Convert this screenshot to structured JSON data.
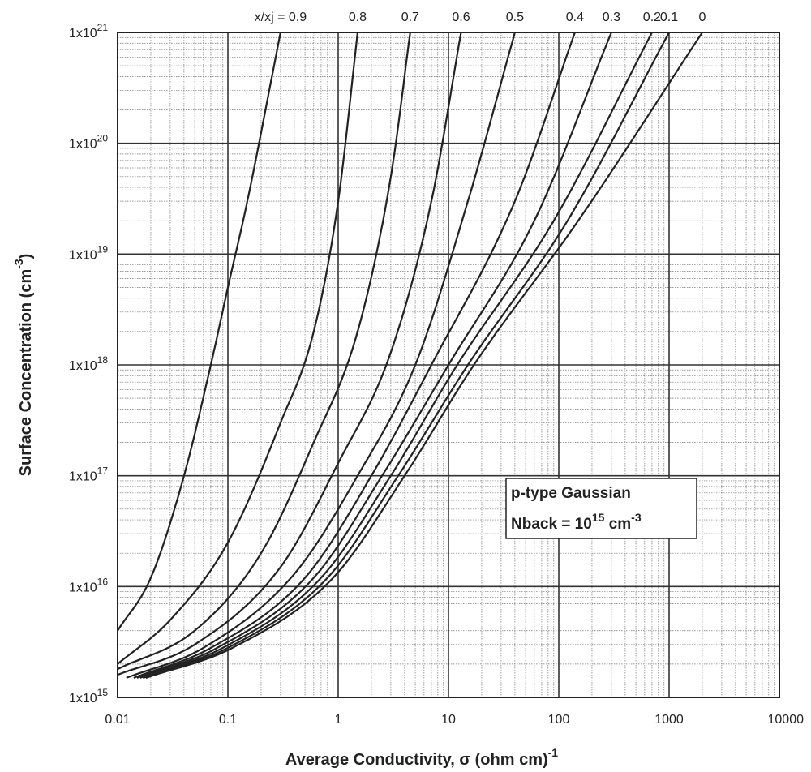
{
  "chart_data": {
    "type": "line",
    "xscale": "log",
    "yscale": "log",
    "xlim": [
      0.01,
      10000
    ],
    "ylim": [
      1000000000000000.0,
      1e+21
    ],
    "grid": true,
    "xlabel": {
      "main": "Average Conductivity, σ (ohm cm)",
      "sup": "-1"
    },
    "ylabel": {
      "main": "Surface Concentration (cm",
      "sup": "-3",
      "tail": ")"
    },
    "x_ticks": [
      {
        "value": 0.01,
        "label": "0.01"
      },
      {
        "value": 0.1,
        "label": "0.1"
      },
      {
        "value": 1,
        "label": "1"
      },
      {
        "value": 10,
        "label": "10"
      },
      {
        "value": 100,
        "label": "100"
      },
      {
        "value": 1000,
        "label": "1000"
      },
      {
        "value": 10000,
        "label": "10000"
      }
    ],
    "y_ticks": [
      {
        "value": 1000000000000000.0,
        "base": "1x10",
        "exp": "15"
      },
      {
        "value": 1e+16,
        "base": "1x10",
        "exp": "16"
      },
      {
        "value": 1e+17,
        "base": "1x10",
        "exp": "17"
      },
      {
        "value": 1e+18,
        "base": "1x10",
        "exp": "18"
      },
      {
        "value": 1e+19,
        "base": "1x10",
        "exp": "19"
      },
      {
        "value": 1e+20,
        "base": "1x10",
        "exp": "20"
      },
      {
        "value": 1e+21,
        "base": "1x10",
        "exp": "21"
      }
    ],
    "annotation": {
      "line1": "p-type Gaussian",
      "line2_prefix": "Nback = 10",
      "line2_exp": "15",
      "line2_unit": " cm",
      "line2_unit_exp": "-3"
    },
    "series": [
      {
        "name": "x/xj = 0.9",
        "x": [
          0.01,
          0.02,
          0.04,
          0.07,
          0.1,
          0.15,
          0.3
        ],
        "y": [
          4000000000000000.0,
          1.2e+16,
          1e+17,
          1e+18,
          5e+18,
          3e+19,
          1e+21
        ]
      },
      {
        "name": "0.8",
        "x": [
          0.01,
          0.03,
          0.1,
          0.3,
          0.6,
          1.0,
          1.5
        ],
        "y": [
          2000000000000000.0,
          5000000000000000.0,
          2.5e+16,
          3e+17,
          2e+18,
          3e+19,
          1e+21
        ]
      },
      {
        "name": "0.7",
        "x": [
          0.01,
          0.05,
          0.2,
          0.6,
          1.5,
          3.0,
          4.5
        ],
        "y": [
          1800000000000000.0,
          4000000000000000.0,
          2e+16,
          2e+17,
          2e+18,
          5e+19,
          1e+21
        ]
      },
      {
        "name": "0.6",
        "x": [
          0.01,
          0.05,
          0.3,
          1.0,
          3.0,
          7.0,
          13
        ],
        "y": [
          1600000000000000.0,
          3000000000000000.0,
          1.5e+16,
          1.3e+17,
          1.3e+18,
          3e+19,
          1e+21
        ]
      },
      {
        "name": "0.5",
        "x": [
          0.012,
          0.06,
          0.4,
          1.5,
          5.0,
          15,
          40
        ],
        "y": [
          1500000000000000.0,
          2800000000000000.0,
          1.3e+16,
          1e+17,
          1e+18,
          3e+19,
          1e+21
        ]
      },
      {
        "name": "0.4",
        "x": [
          0.014,
          0.07,
          0.5,
          2.0,
          7.0,
          40,
          140
        ],
        "y": [
          1500000000000000.0,
          2800000000000000.0,
          1.2e+16,
          1e+17,
          1e+18,
          3e+19,
          1e+21
        ]
      },
      {
        "name": "0.3",
        "x": [
          0.015,
          0.08,
          0.6,
          2.5,
          10,
          60,
          300
        ],
        "y": [
          1500000000000000.0,
          2800000000000000.0,
          1.2e+16,
          1e+17,
          1e+18,
          2e+19,
          1e+21
        ]
      },
      {
        "name": "0.2",
        "x": [
          0.016,
          0.09,
          0.7,
          3.0,
          12,
          90,
          700
        ],
        "y": [
          1500000000000000.0,
          2800000000000000.0,
          1.2e+16,
          1e+17,
          1e+18,
          2e+19,
          1e+21
        ]
      },
      {
        "name": "0.1",
        "x": [
          0.017,
          0.1,
          0.8,
          3.5,
          15,
          120,
          1000
        ],
        "y": [
          1500000000000000.0,
          2800000000000000.0,
          1.2e+16,
          1e+17,
          1e+18,
          2e+19,
          1e+21
        ]
      },
      {
        "name": "0",
        "x": [
          0.018,
          0.11,
          0.9,
          4.0,
          17,
          150,
          2000
        ],
        "y": [
          1500000000000000.0,
          2800000000000000.0,
          1.2e+16,
          1e+17,
          1e+18,
          2e+19,
          1e+21
        ]
      }
    ]
  }
}
